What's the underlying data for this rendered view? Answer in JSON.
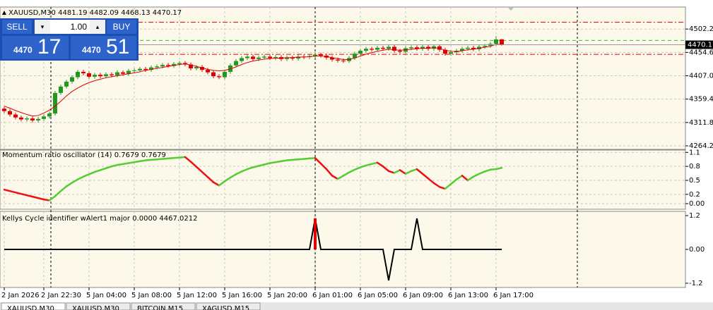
{
  "chart_data": [
    {
      "type": "candlestick",
      "title": "XAUUSD,M30",
      "categories": [
        "2 Jan 2026",
        null,
        null,
        null,
        null,
        null,
        null,
        "2 Jan 22:30",
        null,
        null,
        null,
        null,
        null,
        null,
        null,
        "5 Jan 04:00",
        null,
        null,
        null,
        null,
        null,
        null,
        null,
        "5 Jan 08:00",
        null,
        null,
        null,
        null,
        null,
        null,
        null,
        "5 Jan 12:00",
        null,
        null,
        null,
        null,
        null,
        null,
        null,
        "5 Jan 16:00",
        null,
        null,
        null,
        null,
        null,
        null,
        null,
        "5 Jan 20:00",
        null,
        null,
        null,
        null,
        null,
        null,
        null,
        "6 Jan 01:00",
        null,
        null,
        null,
        null,
        null,
        null,
        null,
        "6 Jan 05:00",
        null,
        null,
        null,
        null,
        null,
        null,
        null,
        "6 Jan 09:00",
        null,
        null,
        null,
        null,
        null,
        null,
        null,
        "6 Jan 13:00",
        null,
        null,
        null,
        null,
        null,
        null,
        null,
        "6 Jan 17:00",
        null
      ],
      "open": [
        4340,
        4335,
        4328,
        4322,
        4318,
        4320,
        4316,
        4319,
        4324,
        4330,
        4372,
        4385,
        4395,
        4404,
        4415,
        4412,
        4405,
        4409,
        4406,
        4410,
        4408,
        4414,
        4411,
        4417,
        4418,
        4421,
        4419,
        4424,
        4426,
        4429,
        4427,
        4431,
        4433,
        4430,
        4422,
        4425,
        4419,
        4414,
        4406,
        4404,
        4415,
        4428,
        4437,
        4443,
        4446,
        4441,
        4444,
        4446,
        4443,
        4445,
        4441,
        4444,
        4442,
        4446,
        4445,
        4447,
        4450,
        4448,
        4444,
        4440,
        4438,
        4437,
        4443,
        4452,
        4458,
        4462,
        4460,
        4464,
        4462,
        4466,
        4458,
        4456,
        4463,
        4465,
        4462,
        4466,
        4462,
        4467,
        4460,
        4452,
        4455,
        4458,
        4462,
        4464,
        4461,
        4466,
        4468,
        4472,
        4481.19
      ],
      "high": [
        4344,
        4339,
        4332,
        4326,
        4324,
        4324,
        4323,
        4328,
        4334,
        4376,
        4389,
        4399,
        4408,
        4419,
        4419,
        4416,
        4413,
        4413,
        4414,
        4414,
        4418,
        4418,
        4421,
        4422,
        4425,
        4425,
        4428,
        4430,
        4433,
        4433,
        4435,
        4437,
        4437,
        4434,
        4429,
        4429,
        4423,
        4418,
        4410,
        4419,
        4432,
        4441,
        4447,
        4450,
        4450,
        4448,
        4450,
        4450,
        4449,
        4449,
        4448,
        4448,
        4450,
        4450,
        4451,
        4454,
        4454,
        4452,
        4448,
        4444,
        4442,
        4447,
        4456,
        4462,
        4466,
        4466,
        4468,
        4468,
        4470,
        4470,
        4462,
        4467,
        4469,
        4469,
        4470,
        4470,
        4471,
        4471,
        4464,
        4459,
        4462,
        4466,
        4468,
        4468,
        4470,
        4472,
        4476,
        4488,
        4482.09
      ],
      "low": [
        4331,
        4324,
        4318,
        4314,
        4314,
        4312,
        4312,
        4315,
        4320,
        4326,
        4368,
        4381,
        4391,
        4400,
        4408,
        4401,
        4401,
        4402,
        4402,
        4404,
        4404,
        4407,
        4407,
        4413,
        4414,
        4415,
        4415,
        4420,
        4422,
        4423,
        4423,
        4427,
        4426,
        4418,
        4418,
        4415,
        4410,
        4402,
        4400,
        4400,
        4411,
        4424,
        4433,
        4439,
        4437,
        4437,
        4440,
        4439,
        4439,
        4437,
        4437,
        4438,
        4438,
        4441,
        4441,
        4443,
        4444,
        4440,
        4436,
        4434,
        4433,
        4433,
        4439,
        4448,
        4454,
        4456,
        4456,
        4458,
        4458,
        4454,
        4452,
        4452,
        4459,
        4458,
        4458,
        4458,
        4458,
        4456,
        4448,
        4448,
        4451,
        4454,
        4458,
        4457,
        4457,
        4462,
        4464,
        4468,
        4468.13
      ],
      "close": [
        4335,
        4328,
        4322,
        4318,
        4320,
        4316,
        4319,
        4324,
        4330,
        4372,
        4385,
        4395,
        4404,
        4415,
        4412,
        4405,
        4409,
        4406,
        4410,
        4408,
        4414,
        4411,
        4417,
        4418,
        4421,
        4419,
        4424,
        4426,
        4429,
        4427,
        4431,
        4433,
        4430,
        4422,
        4425,
        4419,
        4414,
        4406,
        4404,
        4415,
        4428,
        4437,
        4443,
        4446,
        4441,
        4444,
        4446,
        4443,
        4445,
        4441,
        4444,
        4442,
        4446,
        4445,
        4447,
        4450,
        4448,
        4444,
        4440,
        4438,
        4437,
        4443,
        4452,
        4458,
        4462,
        4460,
        4464,
        4462,
        4466,
        4458,
        4456,
        4463,
        4465,
        4462,
        4466,
        4462,
        4467,
        4460,
        4452,
        4455,
        4458,
        4462,
        4464,
        4461,
        4466,
        4468,
        4472,
        4481,
        4470.17
      ],
      "up_color": "#1f9a1f",
      "down_color": "#dd0000",
      "ma": {
        "color": "#dd0000",
        "values": [
          4345,
          4341,
          4336,
          4332,
          4328,
          4325,
          4326,
          4331,
          4337,
          4345,
          4355,
          4366,
          4375,
          4382,
          4388,
          4393,
          4397,
          4400,
          4403,
          4405,
          4407,
          4409,
          4411,
          4413,
          4415,
          4418,
          4420,
          4422,
          4424,
          4426,
          4428,
          4430,
          4431,
          4429,
          4426,
          4423,
          4420,
          4418,
          4417,
          4418,
          4421,
          4425,
          4430,
          4434,
          4437,
          4439,
          4441,
          4442,
          4443,
          4443,
          4444,
          4444,
          4445,
          4445,
          4446,
          4447,
          4447,
          4446,
          4444,
          4442,
          4440,
          4440,
          4443,
          4447,
          4451,
          4454,
          4457,
          4459,
          4461,
          4460,
          4459,
          4460,
          4461,
          4462,
          4463,
          4463,
          4464,
          4463,
          4459,
          4457,
          4456,
          4458,
          4460,
          4461,
          4463,
          4465,
          4467,
          4471,
          4471
        ]
      },
      "levels": [
        {
          "value": 4516,
          "color": "#dd0000"
        },
        {
          "value": 4479,
          "color": "#33bb33"
        },
        {
          "value": 4450.6,
          "color": "#dd0000"
        }
      ],
      "ylim": [
        4257,
        4547
      ],
      "yticks": [
        {
          "value": 4502.2,
          "label": "4502.20"
        },
        {
          "value": 4454.6,
          "label": "4454.60"
        },
        {
          "value": 4407,
          "label": "4407.00"
        },
        {
          "value": 4359.4,
          "label": "4359.40"
        },
        {
          "value": 4311.8,
          "label": "4311.80"
        },
        {
          "value": 4264.2,
          "label": "4264.20"
        }
      ],
      "grid": true
    },
    {
      "type": "line",
      "title": "Momentum ratio oscillator (14)",
      "up_color": "#55cc33",
      "down_color": "#ee1111",
      "values": [
        0.3,
        0.27,
        0.24,
        0.21,
        0.18,
        0.15,
        0.12,
        0.09,
        0.07,
        0.16,
        0.27,
        0.37,
        0.45,
        0.52,
        0.58,
        0.63,
        0.68,
        0.72,
        0.76,
        0.8,
        0.83,
        0.85,
        0.87,
        0.89,
        0.91,
        0.93,
        0.94,
        0.95,
        0.96,
        0.97,
        0.98,
        0.99,
        1.0,
        0.9,
        0.79,
        0.68,
        0.57,
        0.46,
        0.39,
        0.48,
        0.56,
        0.63,
        0.69,
        0.74,
        0.78,
        0.81,
        0.84,
        0.87,
        0.89,
        0.91,
        0.93,
        0.94,
        0.95,
        0.96,
        0.97,
        0.98,
        0.86,
        0.74,
        0.6,
        0.53,
        0.6,
        0.67,
        0.73,
        0.78,
        0.82,
        0.85,
        0.88,
        0.8,
        0.7,
        0.66,
        0.72,
        0.64,
        0.7,
        0.74,
        0.64,
        0.54,
        0.44,
        0.36,
        0.32,
        0.42,
        0.52,
        0.6,
        0.5,
        0.58,
        0.64,
        0.69,
        0.73,
        0.74,
        0.7679
      ],
      "ylim": [
        -0.12,
        1.15
      ],
      "yticks": [
        1.1,
        0.8,
        0.5,
        0.2,
        {
          "value": 0,
          "label": "0.00"
        }
      ],
      "grid": true
    },
    {
      "type": "line",
      "title": "Kellys Cycle identifier wAlert1 major",
      "header_values": [
        "0.0000",
        "4467.0212"
      ],
      "series": [
        {
          "color": "#000000",
          "values": [
            0,
            0,
            0,
            0,
            0,
            0,
            0,
            0,
            0,
            0,
            0,
            0,
            0,
            0,
            0,
            0,
            0,
            0,
            0,
            0,
            0,
            0,
            0,
            0,
            0,
            0,
            0,
            0,
            0,
            0,
            0,
            0,
            0,
            0,
            0,
            0,
            0,
            0,
            0,
            0,
            0,
            0,
            0,
            0,
            0,
            0,
            0,
            0,
            0,
            0,
            0,
            0,
            0,
            0,
            0,
            1.1,
            0,
            0,
            0,
            0,
            0,
            0,
            0,
            0,
            0,
            0,
            0,
            0,
            -1.1,
            0,
            0,
            0,
            0,
            1.1,
            0,
            0,
            0,
            0,
            0,
            0,
            0,
            0,
            0,
            0,
            0,
            0,
            0,
            0,
            0
          ]
        },
        {
          "color": "#dd0000",
          "style": "histogram",
          "values": [
            null,
            null,
            null,
            null,
            null,
            null,
            null,
            null,
            null,
            null,
            null,
            null,
            null,
            null,
            null,
            null,
            null,
            null,
            null,
            null,
            null,
            null,
            null,
            null,
            null,
            null,
            null,
            null,
            null,
            null,
            null,
            null,
            null,
            null,
            null,
            null,
            null,
            null,
            null,
            null,
            null,
            null,
            null,
            null,
            null,
            null,
            null,
            null,
            null,
            null,
            null,
            null,
            null,
            null,
            null,
            1.1,
            null,
            null,
            null,
            null,
            null,
            null,
            null,
            null,
            null,
            null,
            null,
            null,
            null,
            null,
            null,
            null,
            null,
            null,
            null,
            null,
            null,
            null,
            null,
            null,
            null,
            null,
            null,
            null,
            null,
            null,
            null,
            null,
            null
          ]
        }
      ],
      "ylim": [
        -1.35,
        1.35
      ],
      "yticks": [
        1.2,
        {
          "value": 0,
          "label": "0.00"
        },
        -1.2
      ],
      "grid": false
    }
  ],
  "trade_panel": {
    "sell": "SELL",
    "buy": "BUY",
    "volume": "1.00",
    "sell_big": "4470",
    "sell_small": "17",
    "buy_big": "4470",
    "buy_small": "51"
  },
  "tabs": [
    "XAUUSD,M30",
    "XAUUSD,M30",
    "BITCOIN,M15",
    "XAGUSD,M15"
  ]
}
